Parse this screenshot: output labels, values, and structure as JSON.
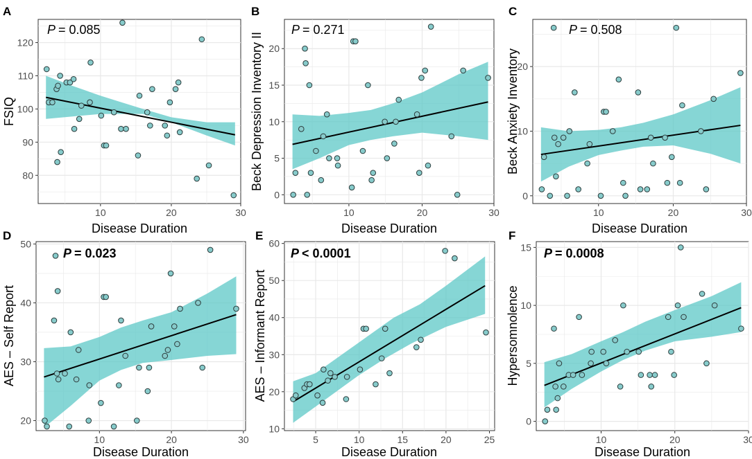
{
  "colors": {
    "band": "#5ec8c7",
    "point_fill": "#87cbcb",
    "point_stroke": "#2b3b3b",
    "line": "#000000",
    "panel_bg": "#ffffff",
    "grid": "#e8e8e8"
  },
  "chart_data": [
    {
      "type": "scatter",
      "letter": "A",
      "p_label": "P",
      "p_value": "= 0.085",
      "p_bold": false,
      "title": "",
      "xlabel": "Disease Duration",
      "ylabel": "FSIQ",
      "xlim": [
        1.2,
        29.8
      ],
      "ylim": [
        71.5,
        127
      ],
      "xticks": [
        10,
        20,
        30
      ],
      "yticks": [
        80,
        90,
        100,
        110,
        120
      ],
      "fit": {
        "x0": 2.3,
        "y0": 103.5,
        "x1": 29,
        "y1": 92.2
      },
      "ci_lower": [
        [
          2.3,
          97
        ],
        [
          10,
          98.5
        ],
        [
          16,
          98.5
        ],
        [
          20,
          96
        ],
        [
          25,
          92
        ],
        [
          29,
          89
        ]
      ],
      "ci_upper": [
        [
          2.3,
          110
        ],
        [
          6,
          107
        ],
        [
          10,
          104
        ],
        [
          13,
          102
        ],
        [
          16,
          100
        ],
        [
          20,
          97.5
        ],
        [
          25,
          96
        ],
        [
          29,
          96
        ]
      ],
      "points": [
        [
          2.4,
          112
        ],
        [
          2.7,
          102
        ],
        [
          3.2,
          102
        ],
        [
          3.8,
          106
        ],
        [
          3.9,
          84
        ],
        [
          4,
          107
        ],
        [
          4.3,
          110
        ],
        [
          4.4,
          87
        ],
        [
          5.2,
          108
        ],
        [
          5.7,
          108
        ],
        [
          6.2,
          109
        ],
        [
          6.3,
          94
        ],
        [
          7,
          97
        ],
        [
          7.3,
          101
        ],
        [
          8.5,
          102
        ],
        [
          8.6,
          114
        ],
        [
          10.1,
          98
        ],
        [
          10.5,
          89
        ],
        [
          10.8,
          89
        ],
        [
          11.9,
          99
        ],
        [
          12.9,
          94
        ],
        [
          13.1,
          126
        ],
        [
          13.6,
          94
        ],
        [
          15.3,
          86
        ],
        [
          15.5,
          104
        ],
        [
          16.6,
          99
        ],
        [
          17,
          95
        ],
        [
          17.3,
          106
        ],
        [
          19.1,
          95
        ],
        [
          19.4,
          92
        ],
        [
          19.8,
          102
        ],
        [
          20.6,
          106
        ],
        [
          21,
          108
        ],
        [
          21.2,
          93
        ],
        [
          23.6,
          79
        ],
        [
          24.3,
          121
        ],
        [
          25.3,
          83
        ],
        [
          28.8,
          74
        ]
      ]
    },
    {
      "type": "scatter",
      "letter": "B",
      "p_label": "P",
      "p_value": "= 0.271",
      "p_bold": false,
      "title": "",
      "xlabel": "Disease Duration",
      "ylabel": "Beck Depression Inventory II",
      "xlim": [
        1.2,
        29.8
      ],
      "ylim": [
        -1.2,
        24
      ],
      "xticks": [
        10,
        20,
        30
      ],
      "yticks": [
        0,
        5,
        10,
        15,
        20
      ],
      "fit": {
        "x0": 2.3,
        "y0": 6.9,
        "x1": 29,
        "y1": 12.7
      },
      "ci_lower": [
        [
          2.3,
          3.5
        ],
        [
          6,
          5
        ],
        [
          10,
          6.8
        ],
        [
          13,
          7.5
        ],
        [
          16,
          8
        ],
        [
          20,
          8.5
        ],
        [
          25,
          8
        ],
        [
          29,
          7.5
        ]
      ],
      "ci_upper": [
        [
          2.3,
          11
        ],
        [
          6,
          10.8
        ],
        [
          10,
          11.2
        ],
        [
          13,
          11.6
        ],
        [
          16,
          12.5
        ],
        [
          20,
          14
        ],
        [
          25,
          16.5
        ],
        [
          29,
          18.2
        ]
      ],
      "points": [
        [
          2.4,
          0
        ],
        [
          2.7,
          3
        ],
        [
          3.5,
          9
        ],
        [
          4,
          20
        ],
        [
          4.1,
          18
        ],
        [
          4.3,
          0
        ],
        [
          4.6,
          15
        ],
        [
          4.8,
          3
        ],
        [
          5.5,
          6
        ],
        [
          6.2,
          2
        ],
        [
          6.5,
          8
        ],
        [
          7,
          11
        ],
        [
          7.3,
          5
        ],
        [
          8.4,
          5
        ],
        [
          8.5,
          4
        ],
        [
          10.4,
          1
        ],
        [
          10.6,
          21
        ],
        [
          10.9,
          21
        ],
        [
          11.9,
          6
        ],
        [
          12.6,
          15
        ],
        [
          13.1,
          2
        ],
        [
          13.3,
          3
        ],
        [
          14.9,
          10
        ],
        [
          15.2,
          5
        ],
        [
          16.2,
          7
        ],
        [
          16.4,
          10
        ],
        [
          16.8,
          13
        ],
        [
          19.3,
          11
        ],
        [
          19.6,
          3
        ],
        [
          19.9,
          16
        ],
        [
          20.4,
          17
        ],
        [
          20.8,
          4
        ],
        [
          21.2,
          23
        ],
        [
          24,
          8
        ],
        [
          24.8,
          0
        ],
        [
          25.6,
          17
        ],
        [
          29,
          16
        ]
      ]
    },
    {
      "type": "scatter",
      "letter": "C",
      "p_label": "P",
      "p_value": "= 0.508",
      "p_bold": false,
      "title": "",
      "xlabel": "Disease Duration",
      "ylabel": "Beck Anxiety Inventory",
      "xlim": [
        1.2,
        29.8
      ],
      "ylim": [
        -1.2,
        27.3
      ],
      "xticks": [
        10,
        20,
        30
      ],
      "yticks": [
        0,
        10,
        20
      ],
      "fit": {
        "x0": 2.3,
        "y0": 6.4,
        "x1": 29,
        "y1": 10.9
      },
      "ci_lower": [
        [
          2.3,
          2.2
        ],
        [
          6,
          4.5
        ],
        [
          10,
          6.3
        ],
        [
          13,
          7
        ],
        [
          16,
          7.6
        ],
        [
          20,
          7.8
        ],
        [
          25,
          6.5
        ],
        [
          29,
          5
        ]
      ],
      "ci_upper": [
        [
          2.3,
          10.6
        ],
        [
          6,
          10
        ],
        [
          10,
          10.2
        ],
        [
          13,
          10.6
        ],
        [
          16,
          11.3
        ],
        [
          20,
          12.6
        ],
        [
          25,
          14.8
        ],
        [
          29,
          16.8
        ]
      ],
      "points": [
        [
          2.4,
          1
        ],
        [
          2.7,
          6
        ],
        [
          3.5,
          0
        ],
        [
          4,
          26
        ],
        [
          4.1,
          9
        ],
        [
          4.3,
          3
        ],
        [
          4.6,
          8
        ],
        [
          5.3,
          9
        ],
        [
          5.8,
          0
        ],
        [
          6.1,
          10
        ],
        [
          6.8,
          16
        ],
        [
          7.3,
          1
        ],
        [
          8.5,
          5
        ],
        [
          8.8,
          8
        ],
        [
          10.3,
          0
        ],
        [
          10.7,
          13
        ],
        [
          11,
          13
        ],
        [
          11.9,
          10
        ],
        [
          12.7,
          18
        ],
        [
          13.3,
          2
        ],
        [
          13.6,
          0
        ],
        [
          15.3,
          16
        ],
        [
          15.6,
          1
        ],
        [
          16.5,
          1
        ],
        [
          17,
          9
        ],
        [
          17.3,
          5
        ],
        [
          18.9,
          9
        ],
        [
          19.2,
          2
        ],
        [
          19.8,
          6
        ],
        [
          20.4,
          26
        ],
        [
          20.9,
          2
        ],
        [
          21.2,
          14
        ],
        [
          23.7,
          10
        ],
        [
          24.4,
          1
        ],
        [
          25.4,
          15
        ],
        [
          29,
          19
        ]
      ]
    },
    {
      "type": "scatter",
      "letter": "D",
      "p_label": "P",
      "p_value": "= 0.023",
      "p_bold": true,
      "title": "",
      "xlabel": "Disease Duration",
      "ylabel": "AES – Self Report",
      "xlim": [
        1.2,
        30.3
      ],
      "ylim": [
        18.3,
        50.4
      ],
      "xticks": [
        10,
        20,
        30
      ],
      "yticks": [
        20,
        30,
        40,
        50
      ],
      "fit": {
        "x0": 2.3,
        "y0": 27.4,
        "x1": 29,
        "y1": 38
      },
      "ci_lower": [
        [
          2.3,
          18.8
        ],
        [
          6,
          22.5
        ],
        [
          10,
          26.8
        ],
        [
          13,
          28.6
        ],
        [
          16,
          29.8
        ],
        [
          20,
          30.3
        ],
        [
          25,
          31
        ],
        [
          29,
          31.3
        ]
      ],
      "ci_upper": [
        [
          2.3,
          32.3
        ],
        [
          6,
          32.6
        ],
        [
          10,
          34.2
        ],
        [
          13,
          35.8
        ],
        [
          16,
          37
        ],
        [
          20,
          38.4
        ],
        [
          25,
          41.6
        ],
        [
          29,
          44.5
        ]
      ],
      "points": [
        [
          2.4,
          20
        ],
        [
          2.7,
          19
        ],
        [
          3.7,
          37
        ],
        [
          3.9,
          48
        ],
        [
          4.1,
          28
        ],
        [
          4.2,
          42
        ],
        [
          4.3,
          27
        ],
        [
          5.2,
          28
        ],
        [
          5.8,
          19
        ],
        [
          6,
          35
        ],
        [
          6.8,
          27
        ],
        [
          7.1,
          32
        ],
        [
          8.5,
          20
        ],
        [
          8.6,
          26
        ],
        [
          10.2,
          23
        ],
        [
          10.6,
          41
        ],
        [
          10.9,
          41
        ],
        [
          12,
          19
        ],
        [
          12.7,
          26
        ],
        [
          13,
          37
        ],
        [
          13.6,
          31
        ],
        [
          15.2,
          20
        ],
        [
          15.5,
          29
        ],
        [
          16.7,
          25
        ],
        [
          16.9,
          29
        ],
        [
          17.2,
          36
        ],
        [
          19.1,
          31
        ],
        [
          19.5,
          32
        ],
        [
          19.9,
          45
        ],
        [
          20.4,
          36
        ],
        [
          20.8,
          33
        ],
        [
          21.2,
          39
        ],
        [
          23.7,
          40
        ],
        [
          24.3,
          29
        ],
        [
          25.4,
          49
        ],
        [
          29,
          39
        ]
      ]
    },
    {
      "type": "scatter",
      "letter": "E",
      "p_label": "P",
      "p_value": "< 0.0001",
      "p_bold": true,
      "title": "",
      "xlabel": "Disease Duration",
      "ylabel": "AES – Informant Report",
      "xlim": [
        1.4,
        25.6
      ],
      "ylim": [
        9.5,
        60.5
      ],
      "xticks": [
        5,
        10,
        15,
        20,
        25
      ],
      "yticks": [
        10,
        20,
        30,
        40,
        50,
        60
      ],
      "fit": {
        "x0": 2.4,
        "y0": 17.3,
        "x1": 24.5,
        "y1": 48.6
      },
      "ci_lower": [
        [
          2.4,
          11.6
        ],
        [
          5,
          16
        ],
        [
          10,
          24.5
        ],
        [
          13,
          29
        ],
        [
          16,
          33
        ],
        [
          20,
          37.5
        ],
        [
          24.5,
          41
        ]
      ],
      "ci_upper": [
        [
          2.4,
          22.8
        ],
        [
          5,
          25
        ],
        [
          8,
          30
        ],
        [
          11,
          35
        ],
        [
          14,
          40
        ],
        [
          17,
          43.6
        ],
        [
          20,
          48.6
        ],
        [
          24.5,
          56.5
        ]
      ],
      "points": [
        [
          2.4,
          18
        ],
        [
          2.7,
          19
        ],
        [
          3.7,
          21
        ],
        [
          4,
          22
        ],
        [
          4.3,
          22
        ],
        [
          5.2,
          19
        ],
        [
          5.8,
          17
        ],
        [
          5.9,
          26
        ],
        [
          6.4,
          23
        ],
        [
          6.7,
          25
        ],
        [
          7.2,
          24
        ],
        [
          8.6,
          24
        ],
        [
          8.5,
          18
        ],
        [
          10.1,
          26
        ],
        [
          10.5,
          37
        ],
        [
          10.8,
          37
        ],
        [
          11.9,
          22
        ],
        [
          12.6,
          29
        ],
        [
          13,
          37
        ],
        [
          13.5,
          25
        ],
        [
          16.6,
          32
        ],
        [
          17.1,
          34
        ],
        [
          19.9,
          58
        ],
        [
          21,
          56
        ],
        [
          24.6,
          36
        ]
      ]
    },
    {
      "type": "scatter",
      "letter": "F",
      "p_label": "P",
      "p_value": "= 0.0008",
      "p_bold": true,
      "title": "",
      "xlabel": "Disease Duration",
      "ylabel": "Hypersomnolence",
      "xlim": [
        1.2,
        30
      ],
      "ylim": [
        -0.8,
        15.5
      ],
      "xticks": [
        10,
        20,
        30
      ],
      "yticks": [
        0,
        5,
        10,
        15
      ],
      "fit": {
        "x0": 2.3,
        "y0": 3.1,
        "x1": 29,
        "y1": 9.8
      },
      "ci_lower": [
        [
          2.3,
          1.2
        ],
        [
          6,
          2.8
        ],
        [
          10,
          4.3
        ],
        [
          13,
          5.3
        ],
        [
          16,
          6.1
        ],
        [
          20,
          6.9
        ],
        [
          25,
          7.3
        ],
        [
          29,
          7.7
        ]
      ],
      "ci_upper": [
        [
          2.3,
          5.1
        ],
        [
          6,
          5.8
        ],
        [
          10,
          6.9
        ],
        [
          13,
          7.7
        ],
        [
          16,
          8.6
        ],
        [
          20,
          9.6
        ],
        [
          25,
          10.8
        ],
        [
          29,
          12
        ]
      ],
      "points": [
        [
          2.4,
          0
        ],
        [
          2.7,
          1
        ],
        [
          3.6,
          8
        ],
        [
          3.8,
          3
        ],
        [
          3.9,
          1
        ],
        [
          4.1,
          2
        ],
        [
          4.3,
          5
        ],
        [
          4.9,
          3
        ],
        [
          5.6,
          4
        ],
        [
          6.2,
          4
        ],
        [
          7,
          9
        ],
        [
          7.4,
          4
        ],
        [
          8.6,
          5
        ],
        [
          8.7,
          6
        ],
        [
          10.3,
          6
        ],
        [
          10.7,
          5
        ],
        [
          11.9,
          7
        ],
        [
          12.6,
          3
        ],
        [
          13,
          10
        ],
        [
          13.5,
          6
        ],
        [
          15.1,
          6
        ],
        [
          15.4,
          4
        ],
        [
          16.6,
          4
        ],
        [
          16.8,
          3
        ],
        [
          17.3,
          4
        ],
        [
          19.1,
          9
        ],
        [
          19.5,
          6
        ],
        [
          19.9,
          4
        ],
        [
          20.4,
          10
        ],
        [
          20.8,
          15
        ],
        [
          21.2,
          9
        ],
        [
          23.7,
          11
        ],
        [
          24.3,
          5
        ],
        [
          25.4,
          10
        ],
        [
          29,
          8
        ]
      ]
    }
  ]
}
